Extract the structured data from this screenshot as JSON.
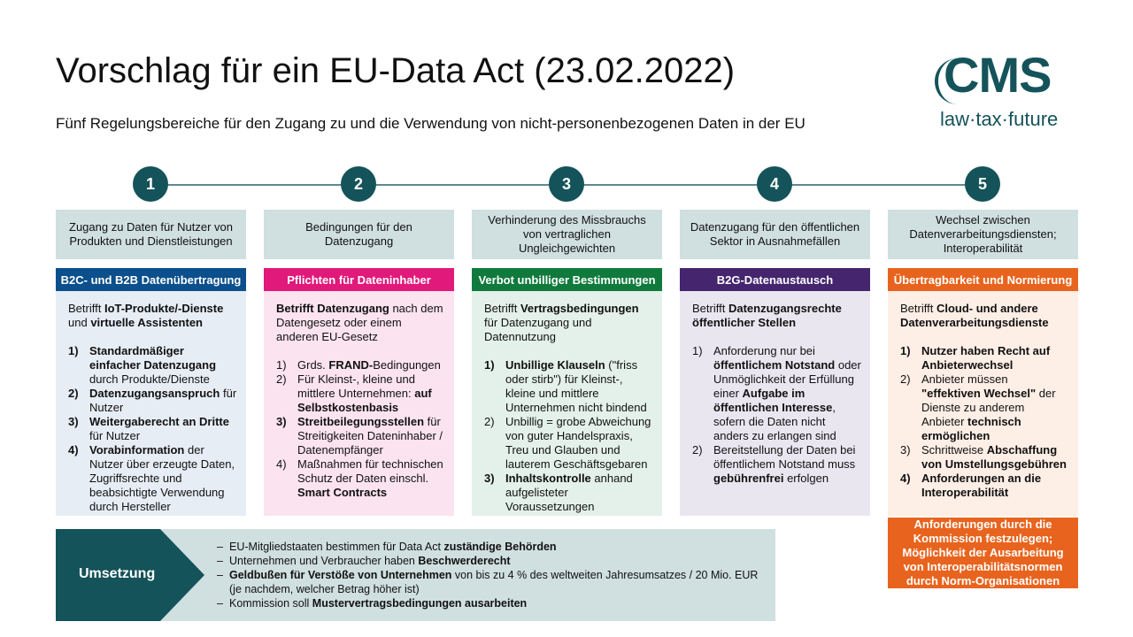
{
  "title": "Vorschlag für ein EU-Data Act (23.02.2022)",
  "subtitle": "Fünf Regelungsbereiche für den Zugang zu und die Verwendung von nicht-personenbezogenen Daten in der EU",
  "logo": {
    "name": "CMS",
    "tagline": "law·tax·future",
    "color": "#15535a"
  },
  "columns": [
    {
      "number": "1",
      "topic": "Zugang zu Daten für Nutzer von Produkten und Dienstleistungen",
      "header": "B2C- und B2B Datenübertragung",
      "header_color": "#0b4f8c",
      "body_bg": "#e6edf5",
      "intro": [
        {
          "t": "Betrifft "
        },
        {
          "t": "IoT-Produkte/-Dienste",
          "b": true
        },
        {
          "t": " und "
        },
        {
          "t": "virtuelle Assistenten",
          "b": true
        }
      ],
      "items": [
        {
          "n": "1)",
          "nb": true,
          "s": [
            {
              "t": "Standardmäßiger einfacher Datenzugang",
              "b": true
            },
            {
              "t": " durch Produkte/Dienste"
            }
          ]
        },
        {
          "n": "2)",
          "nb": true,
          "s": [
            {
              "t": "Datenzugangsanspruch",
              "b": true
            },
            {
              "t": " für Nutzer"
            }
          ]
        },
        {
          "n": "3)",
          "nb": true,
          "s": [
            {
              "t": "Weitergaberecht an Dritte",
              "b": true
            },
            {
              "t": " für Nutzer"
            }
          ]
        },
        {
          "n": "4)",
          "nb": true,
          "s": [
            {
              "t": "Vorabinformation",
              "b": true
            },
            {
              "t": " der Nutzer über erzeugte Daten, Zugriffsrechte und beabsichtigte Verwendung durch Hersteller"
            }
          ]
        }
      ]
    },
    {
      "number": "2",
      "topic": "Bedingungen für den Datenzugang",
      "header": "Pflichten für Dateninhaber",
      "header_color": "#e0197a",
      "body_bg": "#fbe3ef",
      "intro": [
        {
          "t": "Betrifft Datenzugang",
          "b": true
        },
        {
          "t": " nach dem Datengesetz oder einem anderen EU-Gesetz"
        }
      ],
      "items": [
        {
          "n": "1)",
          "s": [
            {
              "t": "Grds. "
            },
            {
              "t": "FRAND-",
              "b": true
            },
            {
              "t": "Bedingungen"
            }
          ]
        },
        {
          "n": "2)",
          "s": [
            {
              "t": "Für Kleinst-, kleine und mittlere Unternehmen: "
            },
            {
              "t": "auf Selbstkostenbasis",
              "b": true
            }
          ]
        },
        {
          "n": "3)",
          "nb": true,
          "s": [
            {
              "t": "Streitbeilegungsstellen",
              "b": true
            },
            {
              "t": " für Streitigkeiten Dateninhaber / Datenempfänger"
            }
          ]
        },
        {
          "n": "4)",
          "s": [
            {
              "t": "Maßnahmen für technischen Schutz der Daten einschl. "
            },
            {
              "t": "Smart Contracts",
              "b": true
            }
          ]
        }
      ]
    },
    {
      "number": "3",
      "topic": "Verhinderung des Missbrauchs von vertraglichen Ungleichgewichten",
      "header": "Verbot unbilliger Bestimmungen",
      "header_color": "#0f7a3c",
      "body_bg": "#e4f1ea",
      "intro": [
        {
          "t": "Betrifft "
        },
        {
          "t": "Vertragsbedingungen",
          "b": true
        },
        {
          "t": " für Datenzugang und Datennutzung"
        }
      ],
      "items": [
        {
          "n": "1)",
          "nb": true,
          "s": [
            {
              "t": "Unbillige Klauseln",
              "b": true
            },
            {
              "t": " (\"friss oder stirb\") für Kleinst-, kleine und mittlere Unternehmen nicht bindend"
            }
          ]
        },
        {
          "n": "2)",
          "s": [
            {
              "t": "Unbillig = grobe Abweichung von guter Handelspraxis, Treu und Glauben und lauterem Geschäftsgebaren"
            }
          ]
        },
        {
          "n": "3)",
          "nb": true,
          "s": [
            {
              "t": "Inhaltskontrolle",
              "b": true
            },
            {
              "t": " anhand aufgelisteter Voraussetzungen"
            }
          ]
        }
      ]
    },
    {
      "number": "4",
      "topic": "Datenzugang für den öffentlichen Sektor in Ausnahmefällen",
      "header": "B2G-Datenaustausch",
      "header_color": "#44256e",
      "body_bg": "#eae6f0",
      "intro": [
        {
          "t": "Betrifft "
        },
        {
          "t": "Datenzugangsrechte öffentlicher Stellen",
          "b": true
        }
      ],
      "items": [
        {
          "n": "1)",
          "s": [
            {
              "t": "Anforderung nur bei "
            },
            {
              "t": "öffentlichem Notstand",
              "b": true
            },
            {
              "t": " oder Unmöglichkeit der Erfüllung einer "
            },
            {
              "t": "Aufgabe im öffentlichen Interesse",
              "b": true
            },
            {
              "t": ", sofern die Daten nicht anders zu erlangen sind"
            }
          ]
        },
        {
          "n": "2)",
          "s": [
            {
              "t": "Bereitstellung der Daten bei öffentlichem Notstand muss "
            },
            {
              "t": "gebührenfrei",
              "b": true
            },
            {
              "t": " erfolgen"
            }
          ]
        }
      ]
    },
    {
      "number": "5",
      "topic": "Wechsel zwischen Datenverarbeitungsdiensten; Interoperabilität",
      "header": "Übertragbarkeit und Normierung",
      "header_color": "#e8641e",
      "body_bg": "#fdeee6",
      "intro": [
        {
          "t": "Betrifft "
        },
        {
          "t": "Cloud- und andere Datenverarbeitungsdienste",
          "b": true
        }
      ],
      "items": [
        {
          "n": "1)",
          "nb": true,
          "s": [
            {
              "t": "Nutzer haben Recht auf Anbieterwechsel",
              "b": true
            }
          ]
        },
        {
          "n": "2)",
          "s": [
            {
              "t": "Anbieter müssen "
            },
            {
              "t": "\"effektiven Wechsel\"",
              "b": true
            },
            {
              "t": " der Dienste zu anderem Anbieter "
            },
            {
              "t": "technisch ermöglichen",
              "b": true
            }
          ]
        },
        {
          "n": "3)",
          "s": [
            {
              "t": "Schrittweise "
            },
            {
              "t": "Abschaffung von Umstellungsgebühren",
              "b": true
            }
          ]
        },
        {
          "n": "4)",
          "nb": true,
          "s": [
            {
              "t": "Anforderungen an die Interoperabilität",
              "b": true
            }
          ]
        }
      ],
      "extra": "Anforderungen durch die Kommission festzulegen; Möglichkeit der Ausarbeitung von Interoperabilitätsnormen durch Norm-Organisationen"
    }
  ],
  "implementation": {
    "label": "Umsetzung",
    "bullets": [
      [
        {
          "t": "EU-Mitgliedstaaten bestimmen für Data Act "
        },
        {
          "t": "zuständige Behörden",
          "b": true
        }
      ],
      [
        {
          "t": "Unternehmen und Verbraucher haben "
        },
        {
          "t": "Beschwerderecht",
          "b": true
        }
      ],
      [
        {
          "t": "Geldbußen für Verstöße von Unternehmen",
          "b": true
        },
        {
          "t": " von bis zu 4 % des weltweiten Jahresumsatzes / 20 Mio. EUR (je nachdem, welcher Betrag höher ist)"
        }
      ],
      [
        {
          "t": "Kommission soll "
        },
        {
          "t": "Mustervertragsbedingungen ausarbeiten",
          "b": true
        }
      ]
    ],
    "dash": "–"
  }
}
